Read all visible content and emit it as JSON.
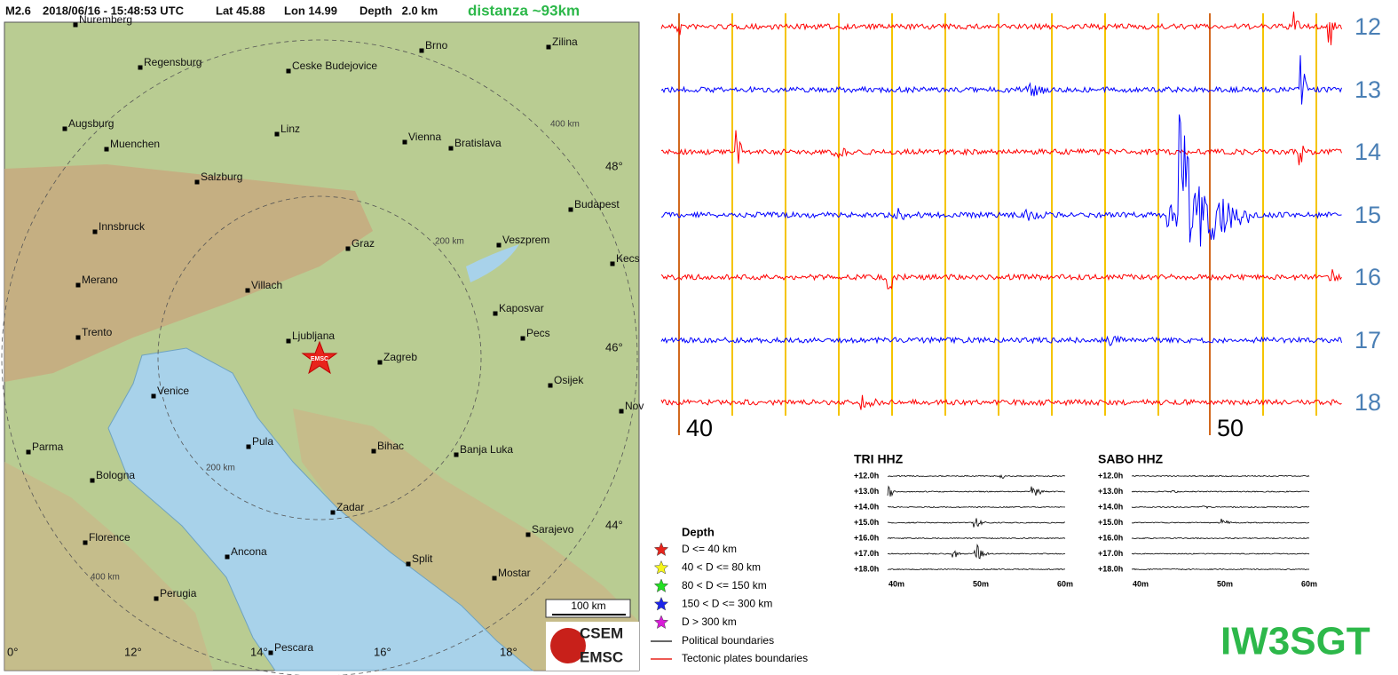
{
  "header": {
    "magnitude": "M2.6",
    "datetime": "2018/06/16 - 15:48:53 UTC",
    "lat": "Lat 45.88",
    "lon": "Lon 14.99",
    "depth": "Depth   2.0 km",
    "distance": "distanza ~93km"
  },
  "map": {
    "cities": [
      "Nuremberg",
      "Regensburg",
      "Ceske Budejovice",
      "Brno",
      "Zilina",
      "Augsburg",
      "Muenchen",
      "Linz",
      "Vienna",
      "Bratislava",
      "Salzburg",
      "Budapest",
      "Innsbruck",
      "Graz",
      "Veszprem",
      "Kecs",
      "Merano",
      "Villach",
      "Kaposvar",
      "Pecs",
      "Trento",
      "Ljubljana",
      "Zagreb",
      "Osijek",
      "Venice",
      "Nov",
      "Parma",
      "Pula",
      "Bihac",
      "Banja Luka",
      "Bologna",
      "Zadar",
      "Florence",
      "Sarajevo",
      "Ancona",
      "Split",
      "Mostar",
      "Perugia",
      "Pescara"
    ],
    "lat_labels": [
      "48°",
      "46°",
      "44°"
    ],
    "lon_labels": [
      "0°",
      "12°",
      "14°",
      "16°",
      "18°"
    ],
    "ring_labels": [
      "400 km",
      "200 km",
      "200 km",
      "400 km"
    ],
    "epicenter_label": "EMSC",
    "scale": "100 km",
    "logo": [
      "CSEM",
      "EMSC"
    ]
  },
  "legend": {
    "title": "Depth",
    "items": [
      {
        "label": "D <= 40 km",
        "color": "#e8241c"
      },
      {
        "label": "40 < D <= 80 km",
        "color": "#f5f51c"
      },
      {
        "label": "80 < D <= 150 km",
        "color": "#22e022"
      },
      {
        "label": "150 < D <= 300 km",
        "color": "#1c24e8"
      },
      {
        "label": "D > 300 km",
        "color": "#d81cd8"
      }
    ],
    "lines": [
      {
        "label": "Political boundaries",
        "color": "#333333"
      },
      {
        "label": "Tectonic plates boundaries",
        "color": "#e8241c"
      }
    ]
  },
  "seismogram": {
    "rows": [
      {
        "label": 12,
        "color": "#ff0000"
      },
      {
        "label": 13,
        "color": "#0000ff"
      },
      {
        "label": 14,
        "color": "#ff0000"
      },
      {
        "label": 15,
        "color": "#0000ff"
      },
      {
        "label": 16,
        "color": "#ff0000"
      },
      {
        "label": 17,
        "color": "#0000ff"
      },
      {
        "label": 18,
        "color": "#ff0000"
      }
    ],
    "minute_labels": [
      40,
      50
    ]
  },
  "helicorders": [
    {
      "title": "TRI HHZ",
      "rows": [
        "+12.0h",
        "+13.0h",
        "+14.0h",
        "+15.0h",
        "+16.0h",
        "+17.0h",
        "+18.0h"
      ],
      "x_labels": [
        "40m",
        "50m",
        "60m"
      ]
    },
    {
      "title": "SABO HHZ",
      "rows": [
        "+12.0h",
        "+13.0h",
        "+14.0h",
        "+15.0h",
        "+16.0h",
        "+17.0h",
        "+18.0h"
      ],
      "x_labels": [
        "40m",
        "50m",
        "60m"
      ]
    }
  ],
  "callsign": "IW3SGT"
}
